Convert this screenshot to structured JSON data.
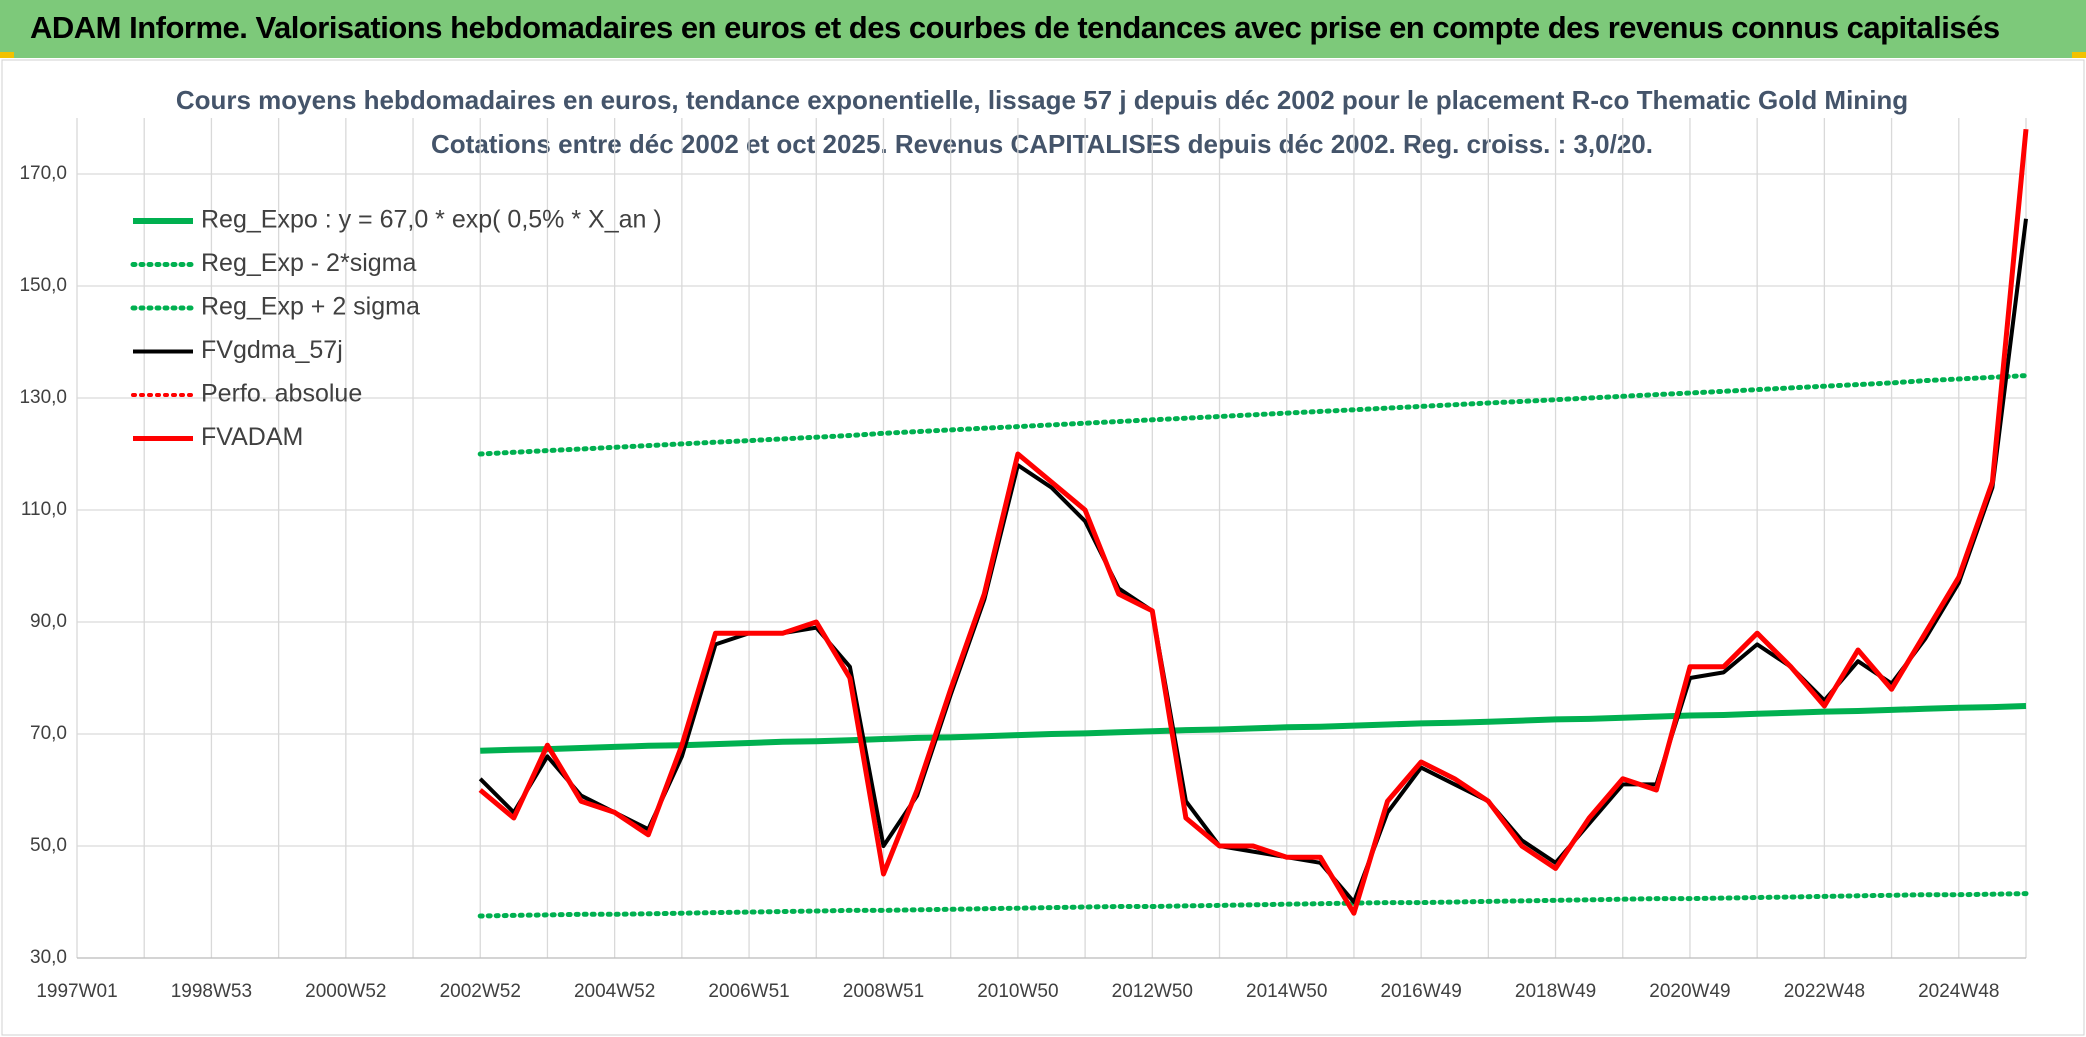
{
  "header": {
    "title": "ADAM Informe. Valorisations hebdomadaires en euros et des courbes de tendances avec prise en compte des revenus connus capitalisés"
  },
  "chart_data": {
    "type": "line",
    "title": "Cours moyens hebdomadaires en euros, tendance exponentielle, lissage 57 j depuis déc 2002 pour le placement R-co Thematic Gold Mining",
    "subtitle": "Cotations entre déc 2002 et oct 2025. Revenus CAPITALISES depuis déc 2002. Reg. croiss. : 3,0/20.",
    "categories": [
      "1997W01",
      null,
      null,
      null,
      "1998W53",
      null,
      null,
      null,
      "2000W52",
      null,
      null,
      null,
      "2002W52",
      null,
      null,
      null,
      "2004W52",
      null,
      null,
      null,
      "2006W51",
      null,
      null,
      null,
      "2008W51",
      null,
      null,
      null,
      "2010W50",
      null,
      null,
      null,
      "2012W50",
      null,
      null,
      null,
      "2014W50",
      null,
      null,
      null,
      "2016W49",
      null,
      null,
      null,
      "2018W49",
      null,
      null,
      null,
      "2020W49",
      null,
      null,
      null,
      "2022W48",
      null,
      null,
      null,
      "2024W48",
      null,
      null
    ],
    "ylim": [
      30,
      180
    ],
    "yticks": [
      {
        "value": 30,
        "label": "30,0"
      },
      {
        "value": 50,
        "label": "50,0"
      },
      {
        "value": 70,
        "label": "70,0"
      },
      {
        "value": 90,
        "label": "90,0"
      },
      {
        "value": 110,
        "label": "110,0"
      },
      {
        "value": 130,
        "label": "130,0"
      },
      {
        "value": 150,
        "label": "150,0"
      },
      {
        "value": 170,
        "label": "170,0"
      }
    ],
    "grid": true,
    "legend": "upper left",
    "series": [
      {
        "name": "Reg_Expo : y = 67,0 * exp( 0,5% *  X_an )",
        "color": "#00b050",
        "style": "solid",
        "values": [
          null,
          null,
          null,
          null,
          null,
          null,
          null,
          null,
          null,
          null,
          null,
          null,
          67.0,
          67.2,
          67.3,
          67.5,
          67.7,
          67.9,
          68.0,
          68.2,
          68.4,
          68.6,
          68.7,
          68.9,
          69.1,
          69.3,
          69.4,
          69.6,
          69.8,
          70.0,
          70.1,
          70.3,
          70.5,
          70.7,
          70.8,
          71.0,
          71.2,
          71.3,
          71.5,
          71.7,
          71.9,
          72.0,
          72.2,
          72.4,
          72.6,
          72.7,
          72.9,
          73.1,
          73.3,
          73.4,
          73.6,
          73.8,
          74.0,
          74.1,
          74.3,
          74.5,
          74.7,
          74.8,
          75.0
        ]
      },
      {
        "name": "Reg_Exp - 2*sigma",
        "color": "#00b050",
        "style": "dotted",
        "values": [
          null,
          null,
          null,
          null,
          null,
          null,
          null,
          null,
          null,
          null,
          null,
          null,
          37.5,
          37.6,
          37.7,
          37.8,
          37.8,
          37.9,
          38.0,
          38.1,
          38.2,
          38.3,
          38.4,
          38.5,
          38.5,
          38.6,
          38.7,
          38.8,
          38.9,
          39.0,
          39.1,
          39.2,
          39.2,
          39.3,
          39.4,
          39.5,
          39.6,
          39.7,
          39.8,
          39.9,
          39.9,
          40.0,
          40.1,
          40.2,
          40.3,
          40.4,
          40.5,
          40.6,
          40.6,
          40.7,
          40.8,
          40.9,
          41.0,
          41.1,
          41.2,
          41.3,
          41.3,
          41.4,
          41.5
        ]
      },
      {
        "name": "Reg_Exp + 2 sigma",
        "color": "#00b050",
        "style": "dotted",
        "values": [
          null,
          null,
          null,
          null,
          null,
          null,
          null,
          null,
          null,
          null,
          null,
          null,
          120.0,
          120.3,
          120.6,
          120.9,
          121.2,
          121.5,
          121.8,
          122.1,
          122.4,
          122.7,
          123.0,
          123.3,
          123.7,
          124.0,
          124.3,
          124.6,
          124.9,
          125.2,
          125.5,
          125.8,
          126.1,
          126.4,
          126.7,
          127.0,
          127.3,
          127.6,
          127.9,
          128.2,
          128.5,
          128.8,
          129.1,
          129.4,
          129.7,
          130.0,
          130.3,
          130.6,
          130.9,
          131.2,
          131.5,
          131.8,
          132.1,
          132.4,
          132.7,
          133.1,
          133.4,
          133.7,
          134.0
        ]
      },
      {
        "name": "FVgdma_57j",
        "color": "#000000",
        "style": "solid",
        "values": [
          null,
          null,
          null,
          null,
          null,
          null,
          null,
          null,
          null,
          null,
          null,
          null,
          62,
          56,
          66,
          59,
          56,
          53,
          66,
          86,
          88,
          88,
          89,
          82,
          50,
          59,
          77,
          94,
          118,
          114,
          108,
          96,
          92,
          58,
          50,
          49,
          48,
          47,
          40,
          56,
          64,
          61,
          58,
          51,
          47,
          54,
          61,
          61,
          80,
          81,
          86,
          82,
          76,
          83,
          79,
          87,
          97,
          114,
          162
        ]
      },
      {
        "name": "Perfo. absolue",
        "color": "#ff0000",
        "style": "dotted",
        "values": [
          null,
          null,
          null,
          null,
          null,
          null,
          null,
          null,
          null,
          null,
          null,
          null,
          null,
          null,
          null,
          null,
          null,
          null,
          null,
          null,
          null,
          null,
          null,
          null,
          null,
          null,
          null,
          null,
          null,
          null,
          null,
          null,
          null,
          null,
          null,
          null,
          null,
          null,
          null,
          null,
          null,
          null,
          null,
          null,
          null,
          null,
          null,
          null,
          null,
          null,
          null,
          null,
          null,
          null,
          null,
          null,
          null,
          null,
          null
        ]
      },
      {
        "name": "FVADAM",
        "color": "#ff0000",
        "style": "solid",
        "values": [
          null,
          null,
          null,
          null,
          null,
          null,
          null,
          null,
          null,
          null,
          null,
          null,
          60,
          55,
          68,
          58,
          56,
          52,
          68,
          88,
          88,
          88,
          90,
          80,
          45,
          60,
          78,
          95,
          120,
          115,
          110,
          95,
          92,
          55,
          50,
          50,
          48,
          48,
          38,
          58,
          65,
          62,
          58,
          50,
          46,
          55,
          62,
          60,
          82,
          82,
          88,
          82,
          75,
          85,
          78,
          88,
          98,
          115,
          178
        ]
      }
    ]
  }
}
